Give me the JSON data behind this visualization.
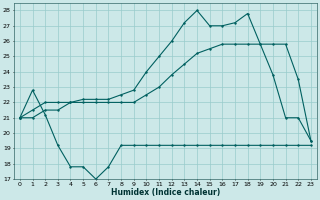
{
  "xlabel": "Humidex (Indice chaleur)",
  "bg_color": "#cce8e8",
  "grid_color": "#99cccc",
  "line_color": "#006060",
  "xlim": [
    -0.5,
    23.5
  ],
  "ylim": [
    17,
    28.5
  ],
  "yticks": [
    17,
    18,
    19,
    20,
    21,
    22,
    23,
    24,
    25,
    26,
    27,
    28
  ],
  "xticks": [
    0,
    1,
    2,
    3,
    4,
    5,
    6,
    7,
    8,
    9,
    10,
    11,
    12,
    13,
    14,
    15,
    16,
    17,
    18,
    19,
    20,
    21,
    22,
    23
  ],
  "line1_x": [
    0,
    1,
    2,
    3,
    4,
    5,
    6,
    7,
    8,
    9,
    10,
    11,
    12,
    13,
    14,
    15,
    16,
    17,
    18,
    19,
    20,
    21,
    22,
    23
  ],
  "line1_y": [
    21.0,
    22.8,
    21.2,
    19.2,
    17.8,
    17.8,
    17.0,
    17.8,
    19.2,
    19.2,
    19.2,
    19.2,
    19.2,
    19.2,
    19.2,
    19.2,
    19.2,
    19.2,
    19.2,
    19.2,
    19.2,
    19.2,
    19.2,
    19.2
  ],
  "line2_x": [
    0,
    1,
    2,
    3,
    4,
    5,
    6,
    7,
    8,
    9,
    10,
    11,
    12,
    13,
    14,
    15,
    16,
    17,
    18,
    19,
    20,
    21,
    22,
    23
  ],
  "line2_y": [
    21.0,
    21.0,
    21.5,
    21.5,
    22.0,
    22.0,
    22.0,
    22.0,
    22.0,
    22.0,
    22.5,
    23.0,
    23.8,
    24.5,
    25.2,
    25.5,
    25.8,
    25.8,
    25.8,
    25.8,
    25.8,
    25.8,
    23.5,
    19.5
  ],
  "line3_x": [
    0,
    1,
    2,
    3,
    4,
    5,
    6,
    7,
    8,
    9,
    10,
    11,
    12,
    13,
    14,
    15,
    16,
    17,
    18,
    19,
    20,
    21,
    22,
    23
  ],
  "line3_y": [
    21.0,
    21.5,
    22.0,
    22.0,
    22.0,
    22.2,
    22.2,
    22.2,
    22.5,
    22.8,
    24.0,
    25.0,
    26.0,
    27.2,
    28.0,
    27.0,
    27.0,
    27.2,
    27.8,
    25.8,
    23.8,
    21.0,
    21.0,
    19.5
  ]
}
